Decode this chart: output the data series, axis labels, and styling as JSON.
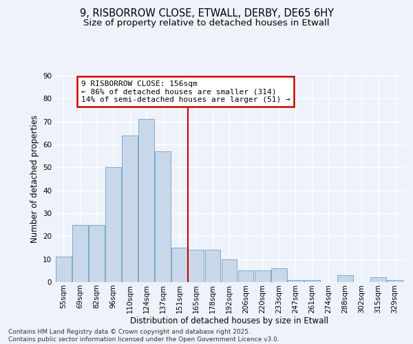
{
  "title_line1": "9, RISBORROW CLOSE, ETWALL, DERBY, DE65 6HY",
  "title_line2": "Size of property relative to detached houses in Etwall",
  "xlabel": "Distribution of detached houses by size in Etwall",
  "ylabel": "Number of detached properties",
  "bar_color": "#c8d8ea",
  "bar_edge_color": "#7aaac8",
  "background_color": "#eef2fa",
  "grid_color": "#ffffff",
  "categories": [
    "55sqm",
    "69sqm",
    "82sqm",
    "96sqm",
    "110sqm",
    "124sqm",
    "137sqm",
    "151sqm",
    "165sqm",
    "178sqm",
    "192sqm",
    "206sqm",
    "220sqm",
    "233sqm",
    "247sqm",
    "261sqm",
    "274sqm",
    "288sqm",
    "302sqm",
    "315sqm",
    "329sqm"
  ],
  "values": [
    11,
    25,
    25,
    50,
    64,
    71,
    57,
    15,
    14,
    14,
    10,
    5,
    5,
    6,
    1,
    1,
    0,
    3,
    0,
    2,
    1
  ],
  "vline_x": 7.5,
  "vline_color": "#cc0000",
  "annotation_text": "9 RISBORROW CLOSE: 156sqm\n← 86% of detached houses are smaller (314)\n14% of semi-detached houses are larger (51) →",
  "annotation_box_color": "#ffffff",
  "annotation_box_edge": "#cc0000",
  "ylim": [
    0,
    90
  ],
  "yticks": [
    0,
    10,
    20,
    30,
    40,
    50,
    60,
    70,
    80,
    90
  ],
  "footer_text": "Contains HM Land Registry data © Crown copyright and database right 2025.\nContains public sector information licensed under the Open Government Licence v3.0.",
  "title_fontsize": 10.5,
  "subtitle_fontsize": 9.5,
  "axis_label_fontsize": 8.5,
  "tick_fontsize": 7.5,
  "annotation_fontsize": 8,
  "footer_fontsize": 6.5
}
